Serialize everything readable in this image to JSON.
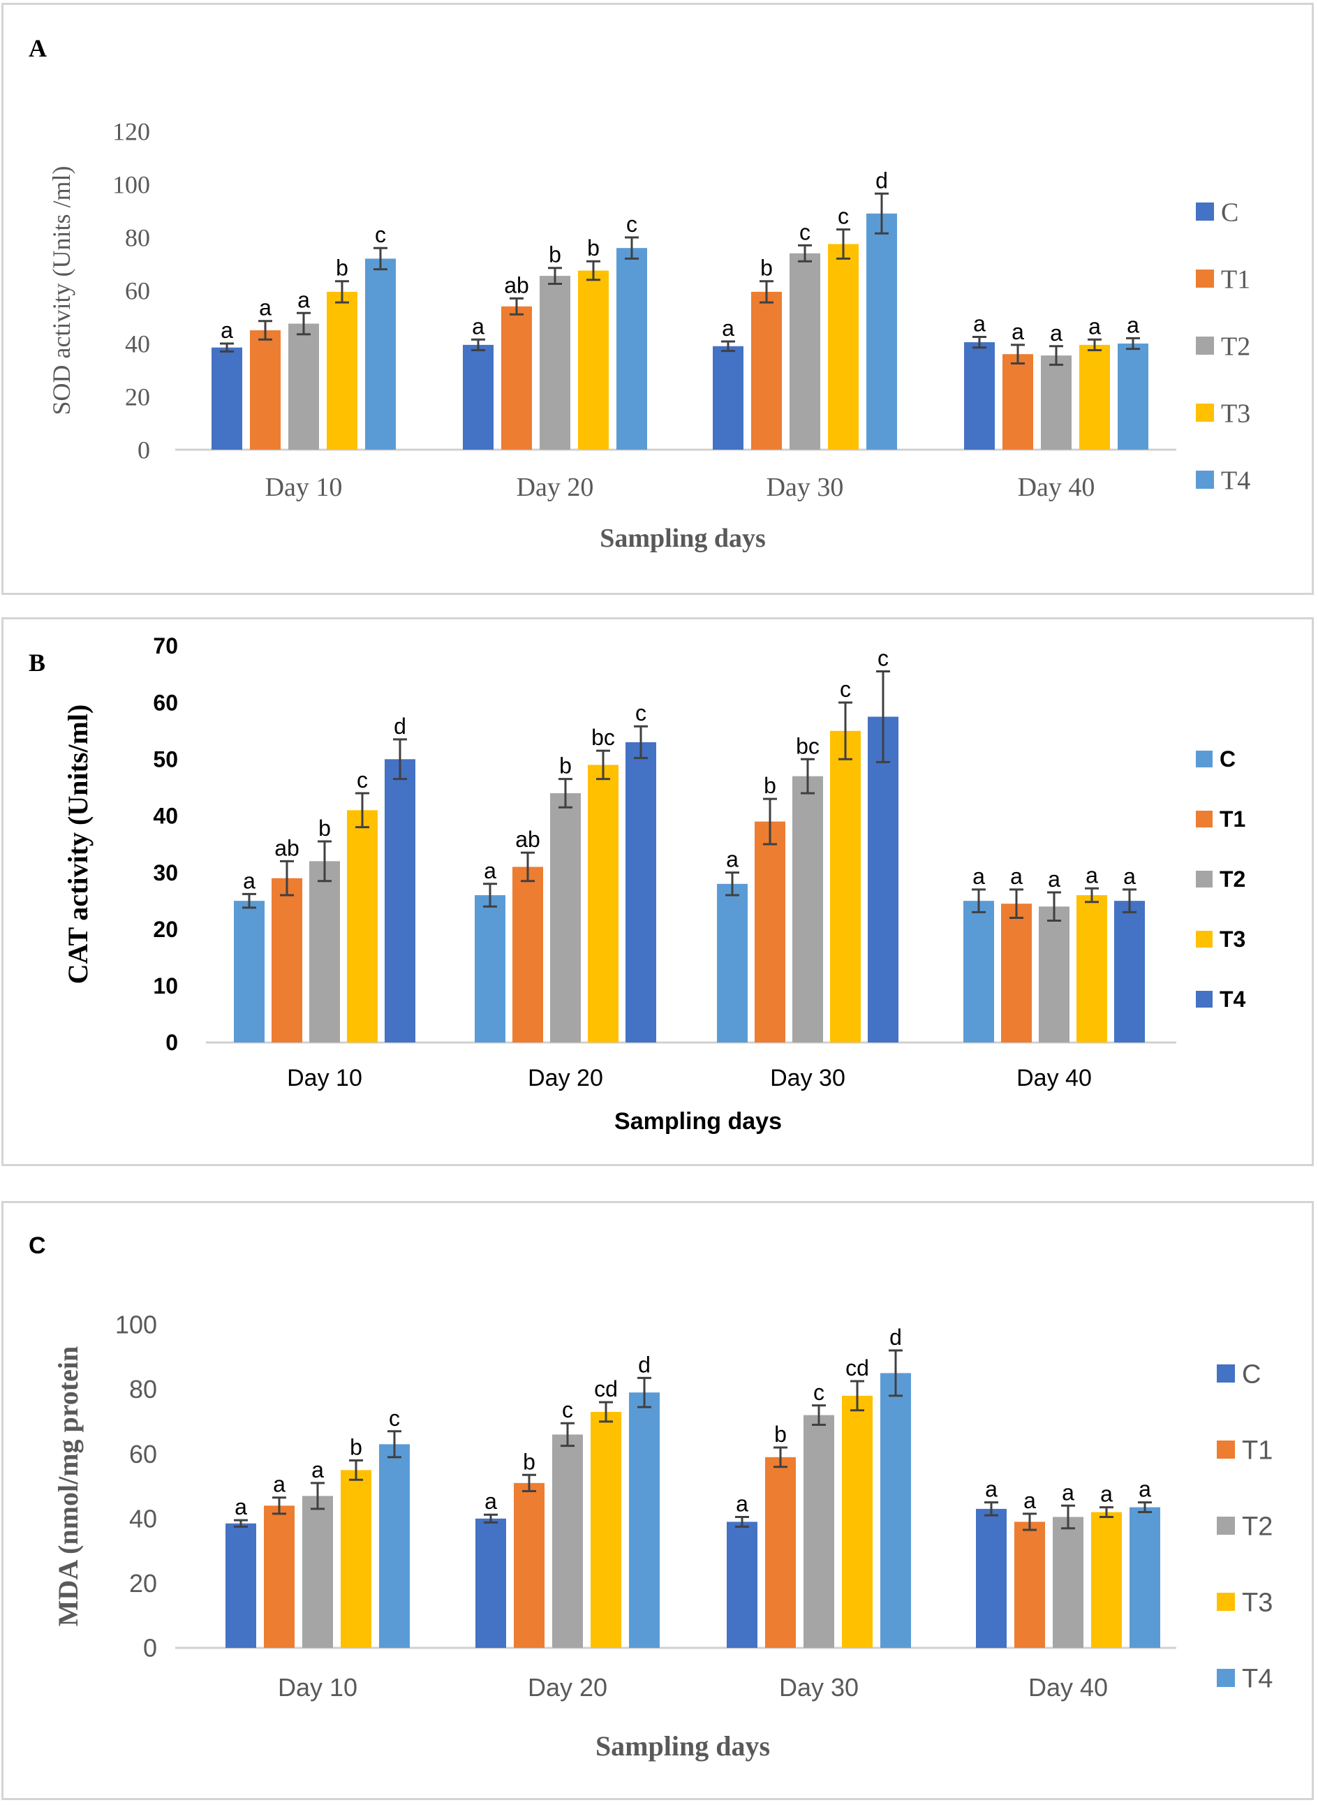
{
  "categories": [
    "Day 10",
    "Day 20",
    "Day 30",
    "Day 40"
  ],
  "series_names": [
    "C",
    "T1",
    "T2",
    "T3",
    "T4"
  ],
  "chart_data": [
    {
      "type": "bar",
      "panel_label": "A",
      "ylabel": "SOD activity (Units /ml)",
      "xlabel": "Sampling days",
      "ylim": [
        0,
        120
      ],
      "yticks": [
        0,
        20,
        40,
        60,
        80,
        100,
        120
      ],
      "categories": [
        "Day 10",
        "Day 20",
        "Day 30",
        "Day 40"
      ],
      "series": [
        {
          "name": "C",
          "color": "#4472C4",
          "values": [
            38.5,
            39.5,
            39,
            40.5
          ],
          "errors": [
            1.5,
            2,
            1.8,
            2
          ],
          "letters": [
            "a",
            "a",
            "a",
            "a"
          ]
        },
        {
          "name": "T1",
          "color": "#ED7D31",
          "values": [
            45,
            54,
            59.5,
            36
          ],
          "errors": [
            3.5,
            3,
            4,
            3.5
          ],
          "letters": [
            "a",
            "ab",
            "b",
            "a"
          ]
        },
        {
          "name": "T2",
          "color": "#A5A5A5",
          "values": [
            47.5,
            65.5,
            74,
            35.5
          ],
          "errors": [
            4,
            3,
            3,
            3.5
          ],
          "letters": [
            "a",
            "b",
            "c",
            "a"
          ]
        },
        {
          "name": "T3",
          "color": "#FFC000",
          "values": [
            59.5,
            67.5,
            77.5,
            39.5
          ],
          "errors": [
            4,
            3.5,
            5.5,
            2
          ],
          "letters": [
            "b",
            "b",
            "c",
            "a"
          ]
        },
        {
          "name": "T4",
          "color": "#5B9BD5",
          "values": [
            72,
            76,
            89,
            40
          ],
          "errors": [
            4,
            4,
            7.5,
            2
          ],
          "letters": [
            "c",
            "c",
            "d",
            "a"
          ]
        }
      ]
    },
    {
      "type": "bar",
      "panel_label": "B",
      "ylabel": "CAT activity (Units/ml)",
      "xlabel": "Sampling days",
      "ylim": [
        0,
        70
      ],
      "yticks": [
        0,
        10,
        20,
        30,
        40,
        50,
        60,
        70
      ],
      "categories": [
        "Day 10",
        "Day 20",
        "Day 30",
        "Day 40"
      ],
      "series": [
        {
          "name": "C",
          "color": "#5B9BD5",
          "values": [
            25,
            26,
            28,
            25
          ],
          "errors": [
            1.2,
            2,
            2,
            2
          ],
          "letters": [
            "a",
            "a",
            "a",
            "a"
          ]
        },
        {
          "name": "T1",
          "color": "#ED7D31",
          "values": [
            29,
            31,
            39,
            24.5
          ],
          "errors": [
            3,
            2.5,
            4,
            2.5
          ],
          "letters": [
            "ab",
            "ab",
            "b",
            "a"
          ]
        },
        {
          "name": "T2",
          "color": "#A5A5A5",
          "values": [
            32,
            44,
            47,
            24
          ],
          "errors": [
            3.5,
            2.5,
            3,
            2.5
          ],
          "letters": [
            "b",
            "b",
            "bc",
            "a"
          ]
        },
        {
          "name": "T3",
          "color": "#FFC000",
          "values": [
            41,
            49,
            55,
            26
          ],
          "errors": [
            3,
            2.5,
            5,
            1.2
          ],
          "letters": [
            "c",
            "bc",
            "c",
            "a"
          ]
        },
        {
          "name": "T4",
          "color": "#4472C4",
          "values": [
            50,
            53,
            57.5,
            25
          ],
          "errors": [
            3.5,
            2.8,
            8,
            2
          ],
          "letters": [
            "d",
            "c",
            "c",
            "a"
          ]
        }
      ]
    },
    {
      "type": "bar",
      "panel_label": "C",
      "ylabel": "MDA (nmol/mg protein",
      "xlabel": "Sampling days",
      "ylim": [
        0,
        100
      ],
      "yticks": [
        0,
        20,
        40,
        60,
        80,
        100
      ],
      "categories": [
        "Day 10",
        "Day 20",
        "Day 30",
        "Day 40"
      ],
      "series": [
        {
          "name": "C",
          "color": "#4472C4",
          "values": [
            38.5,
            40,
            39,
            43
          ],
          "errors": [
            1,
            1.2,
            1.5,
            2
          ],
          "letters": [
            "a",
            "a",
            "a",
            "a"
          ]
        },
        {
          "name": "T1",
          "color": "#ED7D31",
          "values": [
            44,
            51,
            59,
            39
          ],
          "errors": [
            2.5,
            2.5,
            3,
            2.5
          ],
          "letters": [
            "a",
            "b",
            "b",
            "a"
          ]
        },
        {
          "name": "T2",
          "color": "#A5A5A5",
          "values": [
            47,
            66,
            72,
            40.5
          ],
          "errors": [
            4,
            3.5,
            3,
            3.5
          ],
          "letters": [
            "a",
            "c",
            "c",
            "a"
          ]
        },
        {
          "name": "T3",
          "color": "#FFC000",
          "values": [
            55,
            73,
            78,
            42
          ],
          "errors": [
            3,
            3,
            4.5,
            1.5
          ],
          "letters": [
            "b",
            "cd",
            "cd",
            "a"
          ]
        },
        {
          "name": "T4",
          "color": "#5B9BD5",
          "values": [
            63,
            79,
            85,
            43.5
          ],
          "errors": [
            4,
            4.5,
            7,
            1.5
          ],
          "letters": [
            "c",
            "d",
            "d",
            "a"
          ]
        }
      ]
    }
  ]
}
